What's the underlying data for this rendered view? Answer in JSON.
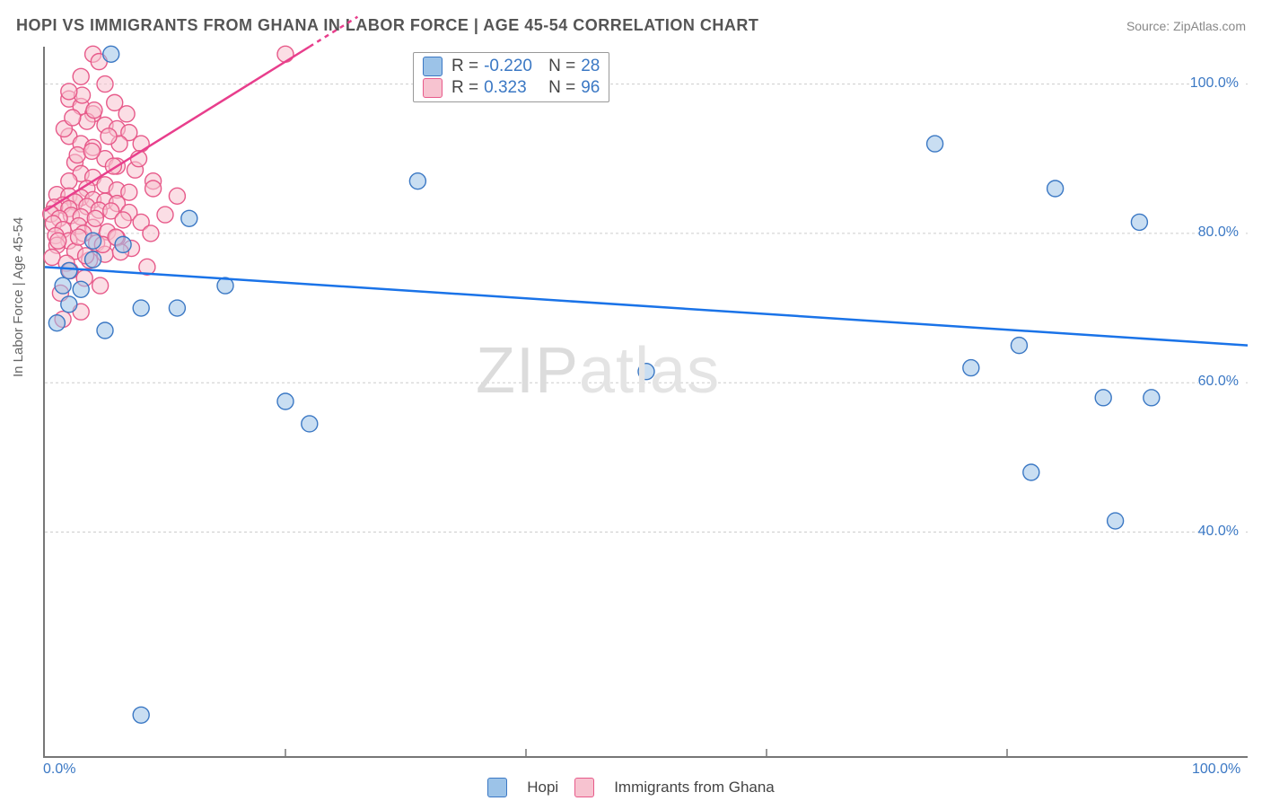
{
  "title": "HOPI VS IMMIGRANTS FROM GHANA IN LABOR FORCE | AGE 45-54 CORRELATION CHART",
  "source_label": "Source: ZipAtlas.com",
  "ylabel": "In Labor Force | Age 45-54",
  "watermark_bold": "ZIP",
  "watermark_thin": "atlas",
  "colors": {
    "blue_fill": "#9cc3e8",
    "blue_stroke": "#3b78c4",
    "blue_line": "#1a73e8",
    "pink_fill": "#f7c3d0",
    "pink_stroke": "#e75a8a",
    "pink_line": "#e83e8c",
    "grid": "#cccccc",
    "axis": "#777777",
    "text_blue": "#3b78c4",
    "text_label": "#555555"
  },
  "chart": {
    "type": "scatter",
    "xlim": [
      0,
      100
    ],
    "ylim": [
      10,
      105
    ],
    "x_ticks": [
      0,
      100
    ],
    "x_tick_labels": [
      "0.0%",
      "100.0%"
    ],
    "x_minor_ticks": [
      20,
      40,
      60,
      80
    ],
    "y_ticks": [
      40,
      60,
      80,
      100
    ],
    "y_tick_labels": [
      "40.0%",
      "60.0%",
      "80.0%",
      "100.0%"
    ],
    "marker_radius": 9,
    "marker_fill_opacity": 0.55,
    "line_width": 2.5
  },
  "stats": {
    "blue": {
      "R_label": "R =",
      "R": "-0.220",
      "N_label": "N =",
      "N": "28"
    },
    "pink": {
      "R_label": "R =",
      "R": "0.323",
      "N_label": "N =",
      "N": "96"
    }
  },
  "legend": {
    "series_a": "Hopi",
    "series_b": "Immigrants from Ghana"
  },
  "trend_lines": {
    "blue": {
      "x1": 0,
      "y1": 75.5,
      "x2": 100,
      "y2": 65.0
    },
    "pink": {
      "x1": 0,
      "y1": 83.0,
      "x2": 22,
      "y2": 105.0
    }
  },
  "series": {
    "blue": [
      [
        5.5,
        104
      ],
      [
        74,
        92
      ],
      [
        31,
        87
      ],
      [
        84,
        86
      ],
      [
        12,
        82
      ],
      [
        91,
        81.5
      ],
      [
        4,
        79
      ],
      [
        6.5,
        78.5
      ],
      [
        4,
        76.5
      ],
      [
        2,
        75
      ],
      [
        1.5,
        73
      ],
      [
        3,
        72.5
      ],
      [
        15,
        73
      ],
      [
        8,
        70
      ],
      [
        2,
        70.5
      ],
      [
        11,
        70
      ],
      [
        1,
        68
      ],
      [
        81,
        65
      ],
      [
        77,
        62
      ],
      [
        50,
        61.5
      ],
      [
        20,
        57.5
      ],
      [
        88,
        58
      ],
      [
        92,
        58
      ],
      [
        22,
        54.5
      ],
      [
        82,
        48
      ],
      [
        89,
        41.5
      ],
      [
        5,
        67
      ],
      [
        8,
        15.5
      ]
    ],
    "pink": [
      [
        4,
        104
      ],
      [
        4.5,
        103
      ],
      [
        3,
        101
      ],
      [
        5,
        100
      ],
      [
        20,
        104
      ],
      [
        2,
        98
      ],
      [
        3,
        97
      ],
      [
        4,
        96
      ],
      [
        3.5,
        95
      ],
      [
        5,
        94.5
      ],
      [
        6,
        94
      ],
      [
        7,
        93.5
      ],
      [
        2,
        93
      ],
      [
        3,
        92
      ],
      [
        4,
        91.5
      ],
      [
        8,
        92
      ],
      [
        5,
        90
      ],
      [
        2.5,
        89.5
      ],
      [
        6,
        89
      ],
      [
        7.5,
        88.5
      ],
      [
        3,
        88
      ],
      [
        4,
        87.5
      ],
      [
        9,
        87
      ],
      [
        2,
        87
      ],
      [
        5,
        86.5
      ],
      [
        3.5,
        86
      ],
      [
        6,
        85.8
      ],
      [
        7,
        85.5
      ],
      [
        1,
        85.2
      ],
      [
        2,
        85
      ],
      [
        3,
        84.8
      ],
      [
        4,
        84.5
      ],
      [
        5,
        84.3
      ],
      [
        2.5,
        84.2
      ],
      [
        6,
        84
      ],
      [
        1.5,
        83.8
      ],
      [
        3.5,
        83.6
      ],
      [
        0.8,
        83.5
      ],
      [
        2,
        83.3
      ],
      [
        4.5,
        83.1
      ],
      [
        5.5,
        83
      ],
      [
        7,
        82.8
      ],
      [
        0.5,
        82.6
      ],
      [
        2.2,
        82.4
      ],
      [
        3,
        82.2
      ],
      [
        1.2,
        82
      ],
      [
        6.5,
        81.8
      ],
      [
        8,
        81.5
      ],
      [
        0.7,
        81.3
      ],
      [
        2.8,
        81
      ],
      [
        4,
        80.8
      ],
      [
        1.5,
        80.5
      ],
      [
        5.2,
        80.2
      ],
      [
        3.2,
        80
      ],
      [
        0.9,
        79.7
      ],
      [
        6,
        79.4
      ],
      [
        2,
        79
      ],
      [
        4.3,
        78.7
      ],
      [
        1,
        78.4
      ],
      [
        7.2,
        78
      ],
      [
        2.5,
        77.6
      ],
      [
        5,
        77.2
      ],
      [
        0.6,
        76.8
      ],
      [
        3.7,
        76.4
      ],
      [
        1.8,
        76
      ],
      [
        8.5,
        75.5
      ],
      [
        4.8,
        78.5
      ],
      [
        6.3,
        77.5
      ],
      [
        2.1,
        75
      ],
      [
        3.3,
        74
      ],
      [
        4.6,
        73
      ],
      [
        1.3,
        72
      ],
      [
        5.7,
        89
      ],
      [
        9,
        86
      ],
      [
        10,
        82.5
      ],
      [
        11,
        85
      ],
      [
        8.8,
        80
      ],
      [
        7.8,
        90
      ],
      [
        6.2,
        92
      ],
      [
        2.7,
        90.5
      ],
      [
        3.9,
        91
      ],
      [
        5.3,
        93
      ],
      [
        1.6,
        94
      ],
      [
        2.3,
        95.5
      ],
      [
        4.1,
        96.5
      ],
      [
        3.1,
        98.5
      ],
      [
        5.8,
        97.5
      ],
      [
        2,
        99
      ],
      [
        6.8,
        96
      ],
      [
        3,
        69.5
      ],
      [
        1.5,
        68.5
      ],
      [
        2.8,
        79.5
      ],
      [
        4.2,
        82
      ],
      [
        5.9,
        79.5
      ],
      [
        3.4,
        77
      ],
      [
        1.1,
        79
      ]
    ]
  }
}
